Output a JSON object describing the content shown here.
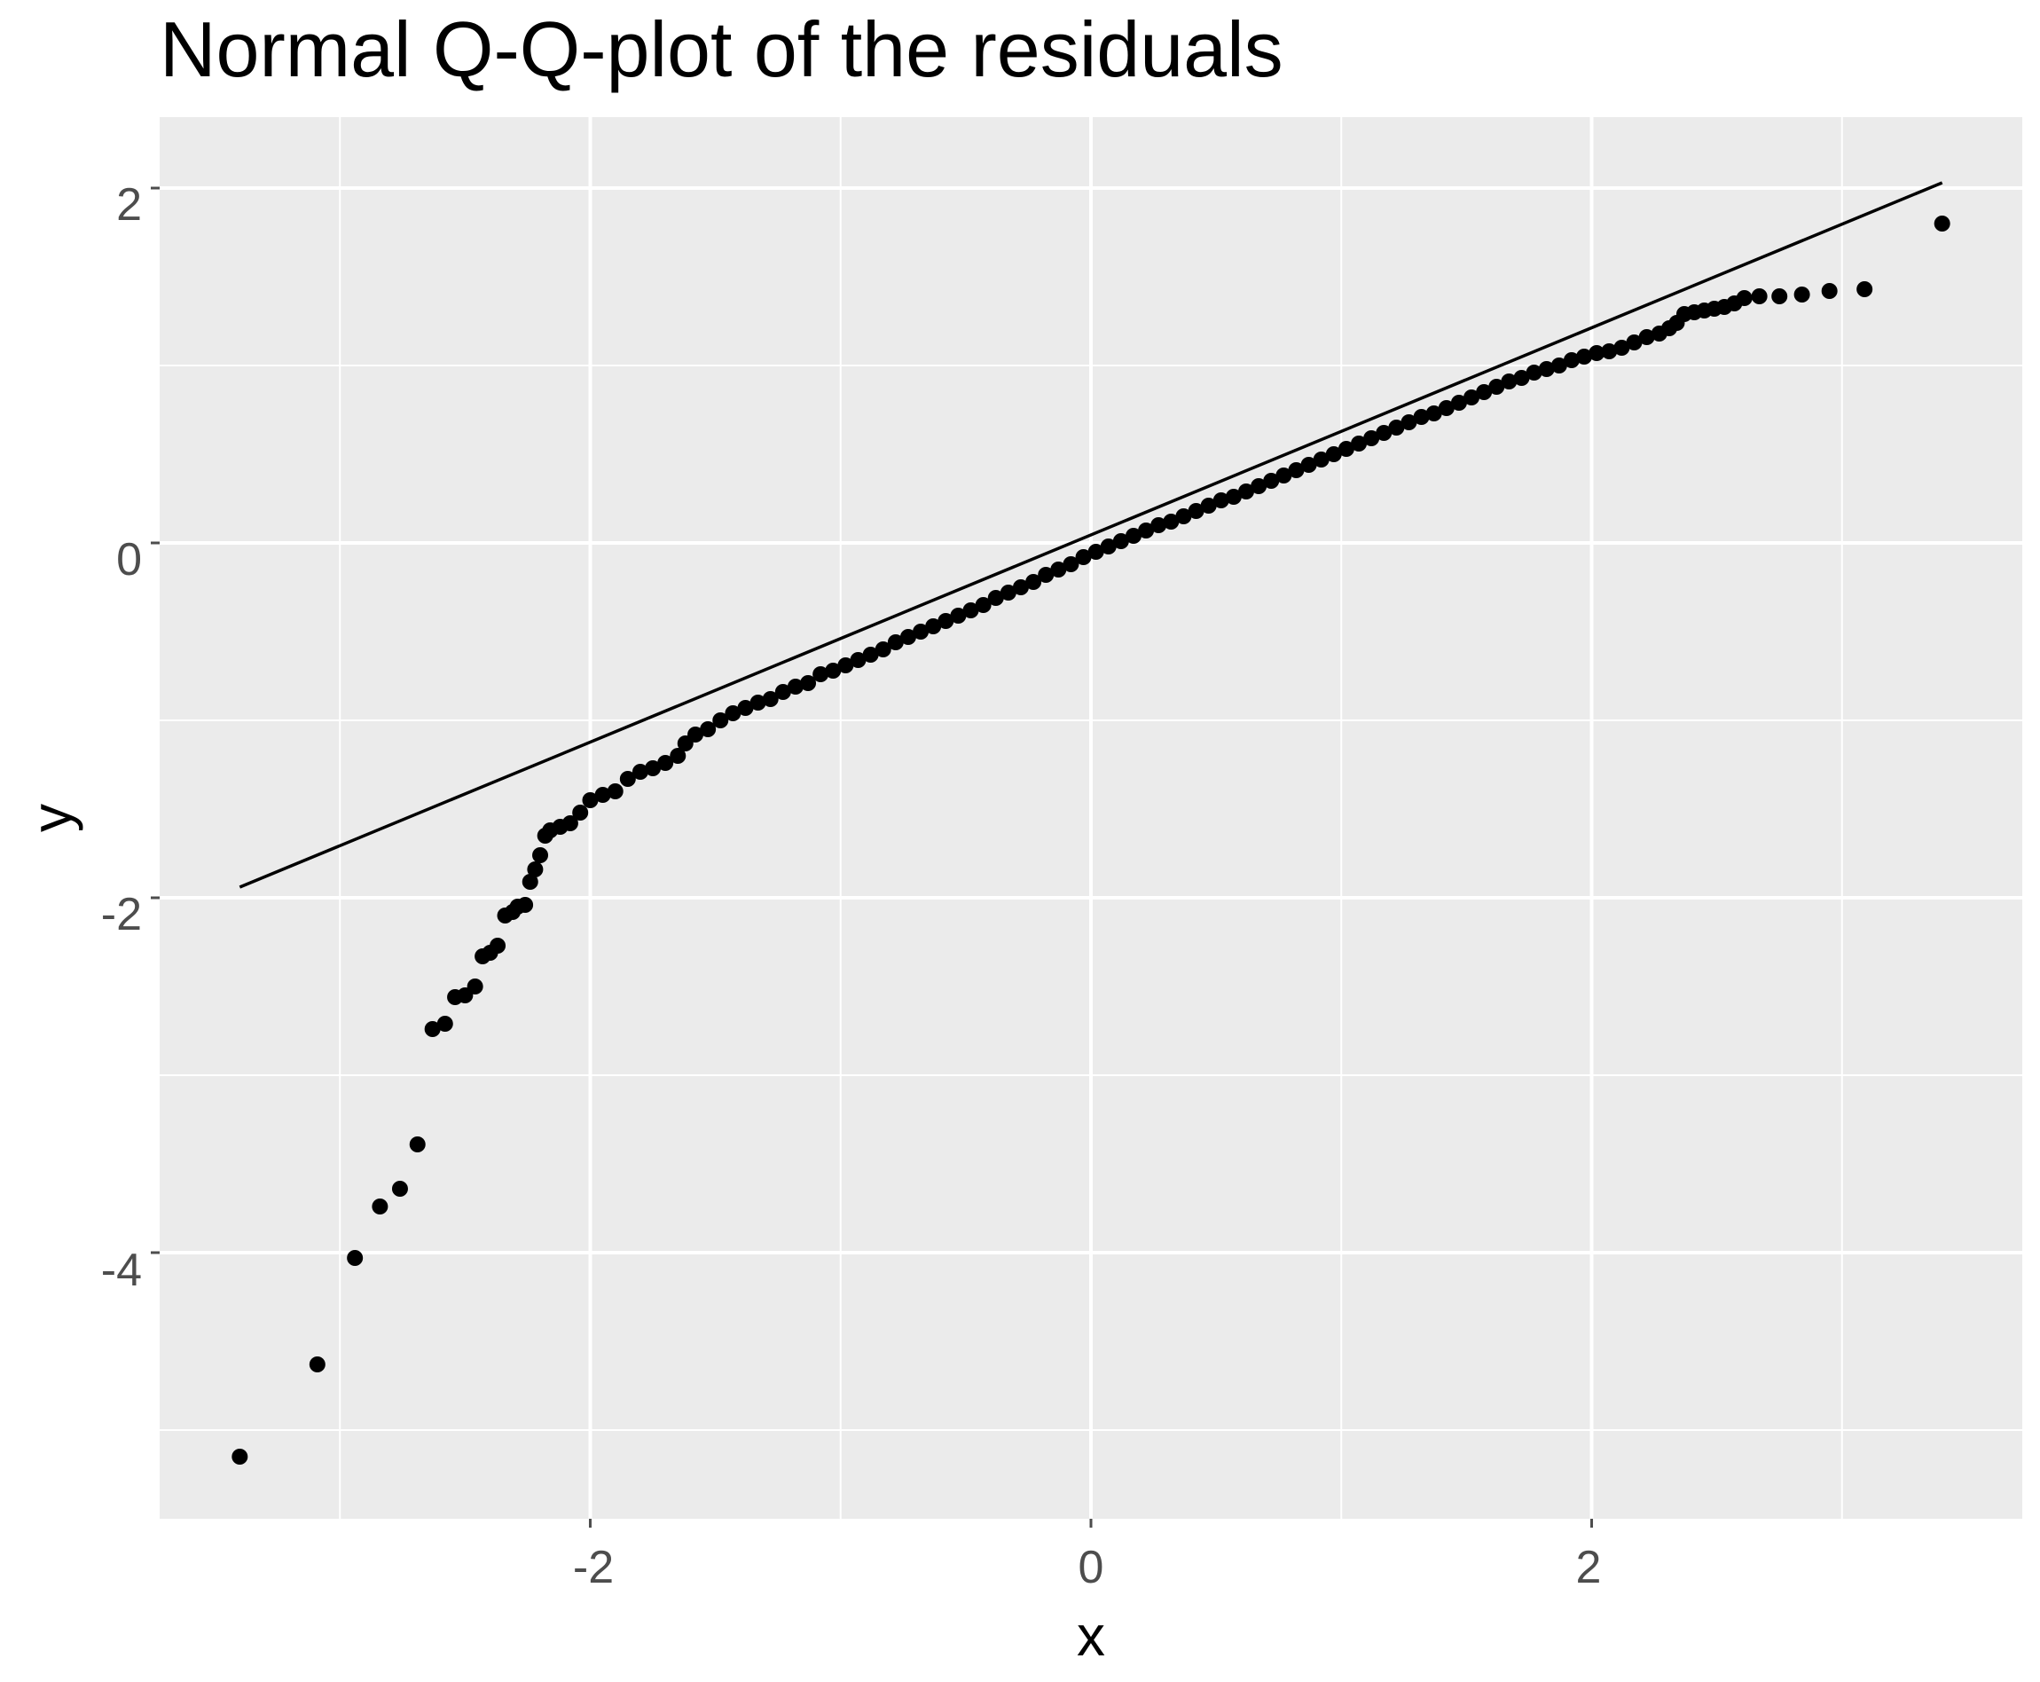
{
  "chart_data": {
    "type": "scatter",
    "title": "Normal Q-Q-plot of the residuals",
    "xlabel": "x",
    "ylabel": "y",
    "xlim": [
      -3.72,
      3.72
    ],
    "ylim": [
      -5.5,
      2.4
    ],
    "x_ticks": [
      "-2",
      "0",
      "2"
    ],
    "y_ticks": [
      "-4",
      "-2",
      "0",
      "2"
    ],
    "grid": true,
    "legend": "none",
    "colors": {
      "panel": "#ebebeb",
      "grid": "#ffffff",
      "points": "#000000",
      "ticks": "#4d4d4d"
    },
    "reference_line": {
      "x": [
        -3.4,
        3.4
      ],
      "y": [
        -1.94,
        2.03
      ]
    },
    "points": [
      [
        -3.4,
        -5.15
      ],
      [
        -3.09,
        -4.63
      ],
      [
        -2.94,
        -4.03
      ],
      [
        -2.84,
        -3.74
      ],
      [
        -2.76,
        -3.64
      ],
      [
        -2.69,
        -3.39
      ],
      [
        -2.63,
        -2.74
      ],
      [
        -2.58,
        -2.71
      ],
      [
        -2.54,
        -2.56
      ],
      [
        -2.5,
        -2.55
      ],
      [
        -2.46,
        -2.5
      ],
      [
        -2.43,
        -2.33
      ],
      [
        -2.4,
        -2.31
      ],
      [
        -2.37,
        -2.27
      ],
      [
        -2.34,
        -2.1
      ],
      [
        -2.31,
        -2.08
      ],
      [
        -2.29,
        -2.05
      ],
      [
        -2.26,
        -2.04
      ],
      [
        -2.24,
        -1.91
      ],
      [
        -2.22,
        -1.84
      ],
      [
        -2.2,
        -1.76
      ],
      [
        -2.18,
        -1.65
      ],
      [
        -2.16,
        -1.62
      ],
      [
        -2.12,
        -1.6
      ],
      [
        -2.08,
        -1.58
      ],
      [
        -2.04,
        -1.52
      ],
      [
        -2.0,
        -1.45
      ],
      [
        -1.95,
        -1.42
      ],
      [
        -1.9,
        -1.4
      ],
      [
        -1.85,
        -1.33
      ],
      [
        -1.8,
        -1.29
      ],
      [
        -1.75,
        -1.27
      ],
      [
        -1.7,
        -1.24
      ],
      [
        -1.65,
        -1.2
      ],
      [
        -1.62,
        -1.13
      ],
      [
        -1.58,
        -1.08
      ],
      [
        -1.53,
        -1.05
      ],
      [
        -1.48,
        -1.0
      ],
      [
        -1.43,
        -0.96
      ],
      [
        -1.38,
        -0.93
      ],
      [
        -1.33,
        -0.9
      ],
      [
        -1.28,
        -0.88
      ],
      [
        -1.23,
        -0.84
      ],
      [
        -1.18,
        -0.81
      ],
      [
        -1.13,
        -0.79
      ],
      [
        -1.08,
        -0.74
      ],
      [
        -1.03,
        -0.72
      ],
      [
        -0.98,
        -0.69
      ],
      [
        -0.93,
        -0.66
      ],
      [
        -0.88,
        -0.63
      ],
      [
        -0.83,
        -0.6
      ],
      [
        -0.78,
        -0.56
      ],
      [
        -0.73,
        -0.53
      ],
      [
        -0.68,
        -0.5
      ],
      [
        -0.63,
        -0.47
      ],
      [
        -0.58,
        -0.44
      ],
      [
        -0.53,
        -0.41
      ],
      [
        -0.48,
        -0.38
      ],
      [
        -0.43,
        -0.35
      ],
      [
        -0.38,
        -0.31
      ],
      [
        -0.33,
        -0.28
      ],
      [
        -0.28,
        -0.25
      ],
      [
        -0.23,
        -0.22
      ],
      [
        -0.18,
        -0.18
      ],
      [
        -0.13,
        -0.15
      ],
      [
        -0.08,
        -0.12
      ],
      [
        -0.03,
        -0.08
      ],
      [
        0.02,
        -0.05
      ],
      [
        0.07,
        -0.02
      ],
      [
        0.12,
        0.01
      ],
      [
        0.17,
        0.04
      ],
      [
        0.22,
        0.07
      ],
      [
        0.27,
        0.1
      ],
      [
        0.32,
        0.12
      ],
      [
        0.37,
        0.15
      ],
      [
        0.42,
        0.18
      ],
      [
        0.47,
        0.21
      ],
      [
        0.52,
        0.24
      ],
      [
        0.57,
        0.26
      ],
      [
        0.62,
        0.29
      ],
      [
        0.67,
        0.32
      ],
      [
        0.72,
        0.35
      ],
      [
        0.77,
        0.38
      ],
      [
        0.82,
        0.41
      ],
      [
        0.87,
        0.44
      ],
      [
        0.92,
        0.47
      ],
      [
        0.97,
        0.5
      ],
      [
        1.02,
        0.53
      ],
      [
        1.07,
        0.56
      ],
      [
        1.12,
        0.59
      ],
      [
        1.17,
        0.62
      ],
      [
        1.22,
        0.65
      ],
      [
        1.27,
        0.68
      ],
      [
        1.32,
        0.71
      ],
      [
        1.37,
        0.73
      ],
      [
        1.42,
        0.76
      ],
      [
        1.47,
        0.79
      ],
      [
        1.52,
        0.82
      ],
      [
        1.57,
        0.85
      ],
      [
        1.62,
        0.88
      ],
      [
        1.67,
        0.91
      ],
      [
        1.72,
        0.93
      ],
      [
        1.77,
        0.96
      ],
      [
        1.82,
        0.98
      ],
      [
        1.87,
        1.0
      ],
      [
        1.92,
        1.03
      ],
      [
        1.97,
        1.05
      ],
      [
        2.02,
        1.07
      ],
      [
        2.07,
        1.08
      ],
      [
        2.12,
        1.1
      ],
      [
        2.17,
        1.13
      ],
      [
        2.22,
        1.16
      ],
      [
        2.27,
        1.18
      ],
      [
        2.31,
        1.21
      ],
      [
        2.34,
        1.24
      ],
      [
        2.37,
        1.29
      ],
      [
        2.41,
        1.3
      ],
      [
        2.45,
        1.31
      ],
      [
        2.49,
        1.32
      ],
      [
        2.53,
        1.33
      ],
      [
        2.57,
        1.35
      ],
      [
        2.61,
        1.38
      ],
      [
        2.67,
        1.39
      ],
      [
        2.75,
        1.39
      ],
      [
        2.84,
        1.4
      ],
      [
        2.95,
        1.42
      ],
      [
        3.09,
        1.43
      ],
      [
        3.4,
        1.8
      ]
    ]
  }
}
